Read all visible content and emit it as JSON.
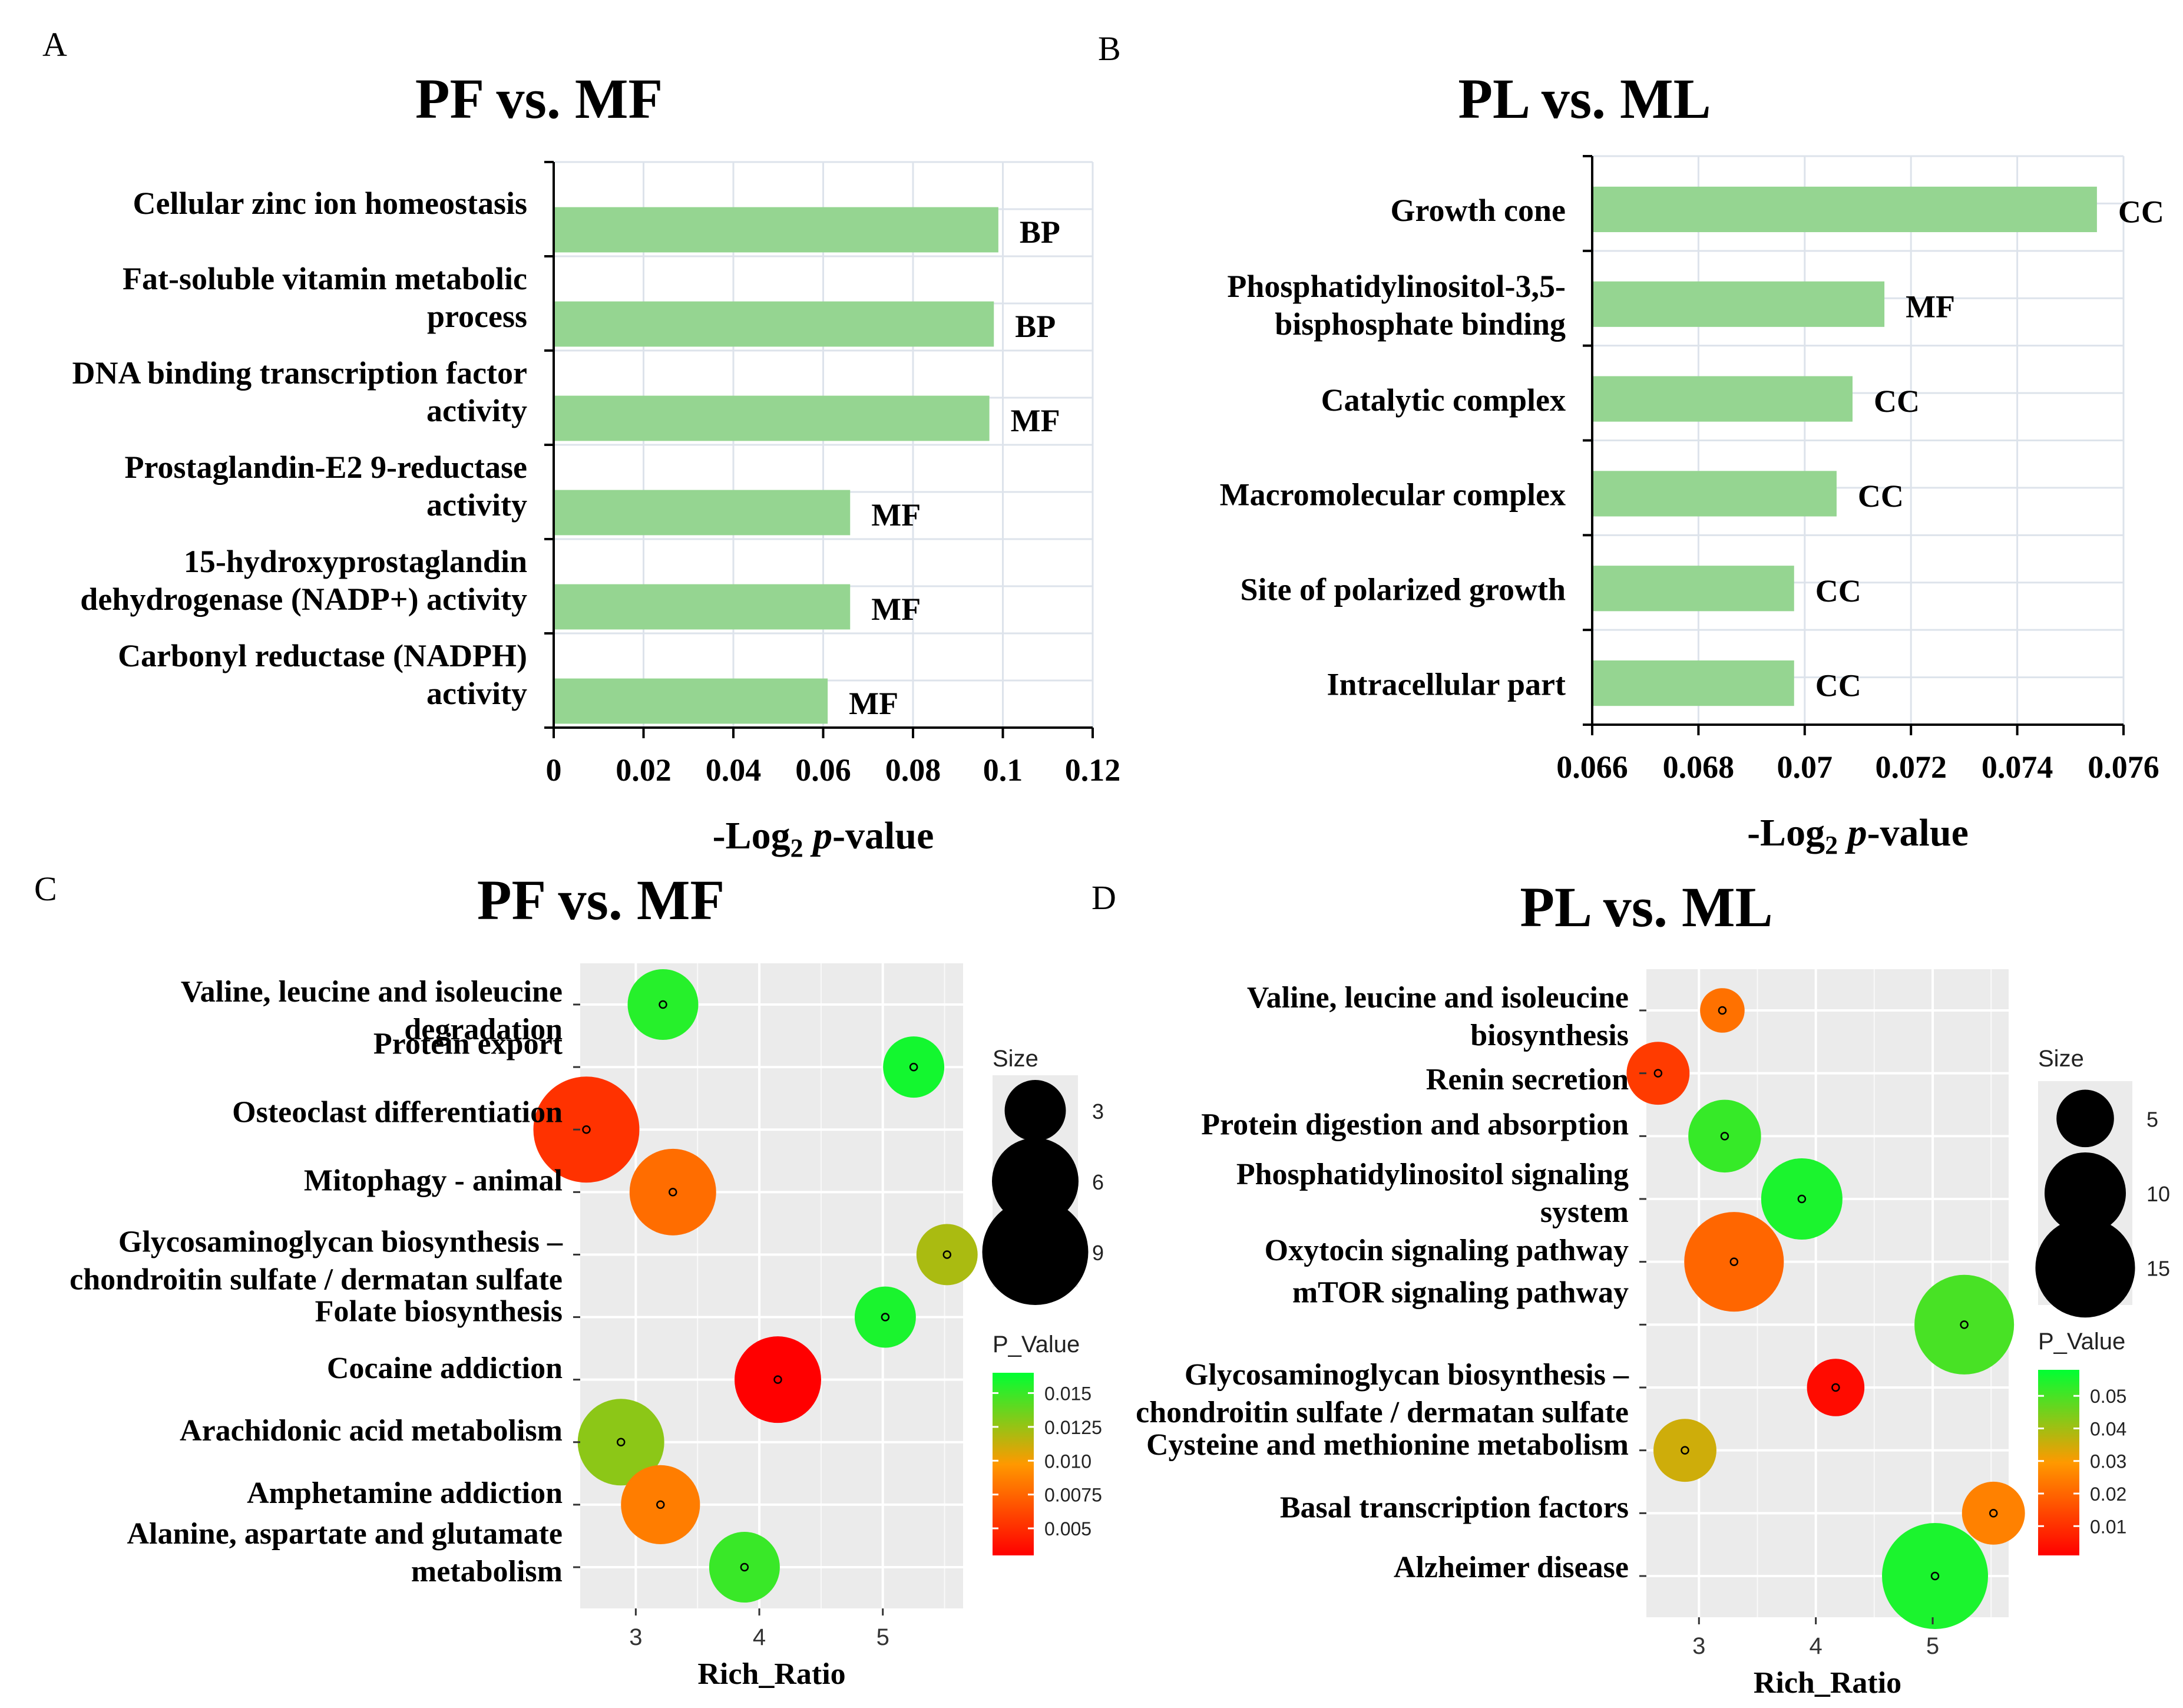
{
  "colors": {
    "bar": "#95d591",
    "panel_bg": "#ebebeb",
    "grid_major": "#ffffff",
    "bar_grid": "#dde3eb",
    "pvalue_high": "#00ff33",
    "pvalue_mid": "#ff9900",
    "pvalue_low": "#ff0000"
  },
  "chart_data": [
    {
      "panel": "A",
      "type": "bar",
      "orientation": "horizontal",
      "title": "PF vs. MF",
      "xlabel_main": "-Log",
      "xlabel_sub": "2",
      "xlabel_italic": "p",
      "xlabel_tail": "-value",
      "xlim": [
        0,
        0.12
      ],
      "ticks": [
        "0",
        "0.02",
        "0.04",
        "0.06",
        "0.08",
        "0.1",
        "0.12"
      ],
      "categories": [
        [
          "Cellular zinc ion homeostasis"
        ],
        [
          "Fat-soluble vitamin metabolic",
          "process"
        ],
        [
          "DNA binding transcription factor",
          "activity"
        ],
        [
          "Prostaglandin-E2 9-reductase",
          "activity"
        ],
        [
          "15-hydroxyprostaglandin",
          "dehydrogenase (NADP+) activity"
        ],
        [
          "Carbonyl reductase (NADPH)",
          "activity"
        ]
      ],
      "values": [
        0.099,
        0.098,
        0.097,
        0.066,
        0.066,
        0.061
      ],
      "bar_labels": [
        "BP",
        "BP",
        "MF",
        "MF",
        "MF",
        "MF"
      ]
    },
    {
      "panel": "B",
      "type": "bar",
      "orientation": "horizontal",
      "title": "PL vs. ML",
      "xlabel_main": "-Log",
      "xlabel_sub": "2",
      "xlabel_italic": "p",
      "xlabel_tail": "-value",
      "xlim": [
        0.066,
        0.076
      ],
      "ticks": [
        "0.066",
        "0.068",
        "0.07",
        "0.072",
        "0.074",
        "0.076"
      ],
      "categories": [
        [
          "Growth cone"
        ],
        [
          "Phosphatidylinositol-3,5-",
          "bisphosphate binding"
        ],
        [
          "Catalytic complex"
        ],
        [
          "Macromolecular complex"
        ],
        [
          "Site of polarized growth"
        ],
        [
          "Intracellular part"
        ]
      ],
      "values": [
        0.0755,
        0.0715,
        0.0709,
        0.0706,
        0.0698,
        0.0698
      ],
      "bar_labels": [
        "CC",
        "MF",
        "CC",
        "CC",
        "CC",
        "CC"
      ]
    },
    {
      "panel": "C",
      "type": "scatter",
      "subtype": "bubble",
      "title": "PF vs. MF",
      "xlabel": "Rich_Ratio",
      "xlim": [
        2.55,
        5.65
      ],
      "xticks": [
        "3",
        "4",
        "5"
      ],
      "categories": [
        [
          "Valine, leucine and isoleucine",
          "degradation"
        ],
        [
          "Protein export"
        ],
        [
          "Osteoclast differentiation"
        ],
        [
          "Mitophagy - animal"
        ],
        [
          "Glycosaminoglycan biosynthesis –",
          "chondroitin sulfate / dermatan sulfate"
        ],
        [
          "Folate biosynthesis"
        ],
        [
          "Cocaine addiction"
        ],
        [
          "Arachidonic acid metabolism"
        ],
        [
          "Amphetamine addiction"
        ],
        [
          "Alanine, aspartate and glutamate",
          "metabolism"
        ]
      ],
      "points": [
        {
          "x": 3.22,
          "size": 4,
          "p": 0.0155
        },
        {
          "x": 5.25,
          "size": 3,
          "p": 0.016
        },
        {
          "x": 2.6,
          "size": 9,
          "p": 0.0052
        },
        {
          "x": 3.3,
          "size": 6,
          "p": 0.0078
        },
        {
          "x": 5.52,
          "size": 3,
          "p": 0.012
        },
        {
          "x": 5.02,
          "size": 3,
          "p": 0.0158
        },
        {
          "x": 4.15,
          "size": 6,
          "p": 0.0025
        },
        {
          "x": 2.88,
          "size": 6,
          "p": 0.0128
        },
        {
          "x": 3.2,
          "size": 5,
          "p": 0.0085
        },
        {
          "x": 3.88,
          "size": 4,
          "p": 0.015
        }
      ],
      "size_legend": {
        "title": "Size",
        "values": [
          3,
          6,
          9
        ],
        "labels": [
          "3",
          "6",
          "9"
        ]
      },
      "color_legend": {
        "title": "P_Value",
        "range": [
          0.003,
          0.0165
        ],
        "ticks": [
          0.015,
          0.0125,
          0.01,
          0.0075,
          0.005
        ],
        "labels": [
          "0.015",
          "0.0125",
          "0.010",
          "0.0075",
          "0.005"
        ]
      }
    },
    {
      "panel": "D",
      "type": "scatter",
      "subtype": "bubble",
      "title": "PL vs. ML",
      "xlabel": "Rich_Ratio",
      "xlim": [
        2.55,
        5.65
      ],
      "xticks": [
        "3",
        "4",
        "5"
      ],
      "categories": [
        [
          "Valine, leucine and isoleucine",
          "biosynthesis"
        ],
        [
          "Renin secretion"
        ],
        [
          "Protein digestion and absorption"
        ],
        [
          "Phosphatidylinositol signaling",
          "system"
        ],
        [
          "Oxytocin signaling pathway"
        ],
        [
          "mTOR signaling pathway"
        ],
        [
          "Glycosaminoglycan biosynthesis –",
          "chondroitin sulfate / dermatan sulfate"
        ],
        [
          "Cysteine and methionine metabolism"
        ],
        [
          "Basal transcription factors"
        ],
        [
          "Alzheimer disease"
        ]
      ],
      "points": [
        {
          "x": 3.2,
          "size": 3,
          "p": 0.022
        },
        {
          "x": 2.65,
          "size": 6,
          "p": 0.012
        },
        {
          "x": 3.22,
          "size": 8,
          "p": 0.052
        },
        {
          "x": 3.88,
          "size": 10,
          "p": 0.055
        },
        {
          "x": 3.3,
          "size": 15,
          "p": 0.02
        },
        {
          "x": 5.27,
          "size": 15,
          "p": 0.05
        },
        {
          "x": 4.17,
          "size": 5,
          "p": 0.003
        },
        {
          "x": 2.88,
          "size": 6,
          "p": 0.035
        },
        {
          "x": 5.52,
          "size": 6,
          "p": 0.025
        },
        {
          "x": 5.02,
          "size": 17,
          "p": 0.055
        }
      ],
      "size_legend": {
        "title": "Size",
        "values": [
          5,
          10,
          15
        ],
        "labels": [
          "5",
          "10",
          "15"
        ]
      },
      "color_legend": {
        "title": "P_Value",
        "range": [
          0.001,
          0.058
        ],
        "ticks": [
          0.05,
          0.04,
          0.03,
          0.02,
          0.01
        ],
        "labels": [
          "0.05",
          "0.04",
          "0.03",
          "0.02",
          "0.01"
        ]
      }
    }
  ],
  "panel_letters": [
    "A",
    "B",
    "C",
    "D"
  ]
}
